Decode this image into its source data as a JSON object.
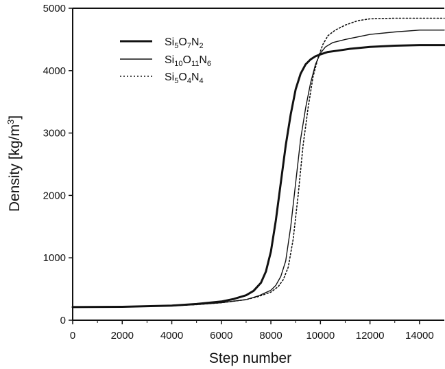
{
  "chart_data": {
    "type": "line",
    "title": "",
    "xlabel": "Step number",
    "ylabel": {
      "main": "Density [kg/m",
      "sup": "3",
      "end": "]"
    },
    "xlim": [
      0,
      15000
    ],
    "ylim": [
      0,
      5000
    ],
    "xticks": [
      0,
      2000,
      4000,
      6000,
      8000,
      10000,
      12000,
      14000
    ],
    "yticks": [
      0,
      1000,
      2000,
      3000,
      4000,
      5000
    ],
    "grid": false,
    "legend_position": "top-left",
    "series": [
      {
        "name": {
          "parts": [
            {
              "t": "Si"
            },
            {
              "t": "5",
              "sub": true
            },
            {
              "t": "O"
            },
            {
              "t": "7",
              "sub": true
            },
            {
              "t": "N"
            },
            {
              "t": "2",
              "sub": true
            }
          ]
        },
        "style": "thick",
        "x": [
          0,
          2000,
          4000,
          5000,
          6000,
          6500,
          7000,
          7300,
          7600,
          7800,
          8000,
          8200,
          8400,
          8600,
          8800,
          9000,
          9200,
          9400,
          9600,
          9800,
          10000,
          10300,
          10700,
          11200,
          12000,
          13000,
          14000,
          15000
        ],
        "y": [
          210,
          215,
          235,
          260,
          300,
          340,
          400,
          470,
          600,
          780,
          1100,
          1600,
          2200,
          2800,
          3300,
          3700,
          3950,
          4100,
          4180,
          4230,
          4260,
          4300,
          4320,
          4350,
          4380,
          4400,
          4410,
          4410
        ]
      },
      {
        "name": {
          "parts": [
            {
              "t": "Si"
            },
            {
              "t": "10",
              "sub": true
            },
            {
              "t": "O"
            },
            {
              "t": "11",
              "sub": true
            },
            {
              "t": "N"
            },
            {
              "t": "6",
              "sub": true
            }
          ]
        },
        "style": "thin",
        "x": [
          0,
          2000,
          4000,
          5000,
          6000,
          7000,
          7500,
          8000,
          8200,
          8400,
          8600,
          8800,
          9000,
          9200,
          9400,
          9600,
          9800,
          10000,
          10200,
          10500,
          11000,
          12000,
          13000,
          14000,
          15000
        ],
        "y": [
          210,
          215,
          230,
          250,
          280,
          330,
          390,
          480,
          560,
          700,
          950,
          1500,
          2200,
          2900,
          3400,
          3800,
          4100,
          4280,
          4380,
          4450,
          4500,
          4580,
          4620,
          4650,
          4650
        ]
      },
      {
        "name": {
          "parts": [
            {
              "t": "Si"
            },
            {
              "t": "5",
              "sub": true
            },
            {
              "t": "O"
            },
            {
              "t": "4",
              "sub": true
            },
            {
              "t": "N"
            },
            {
              "t": "4",
              "sub": true
            }
          ]
        },
        "style": "dotted",
        "x": [
          0,
          2000,
          4000,
          5000,
          6000,
          7000,
          7500,
          8000,
          8300,
          8500,
          8700,
          8900,
          9100,
          9300,
          9500,
          9700,
          9900,
          10100,
          10300,
          10600,
          11000,
          11500,
          12000,
          13000,
          14000,
          15000
        ],
        "y": [
          210,
          215,
          230,
          250,
          280,
          330,
          380,
          450,
          540,
          650,
          850,
          1300,
          2000,
          2800,
          3400,
          3900,
          4200,
          4420,
          4560,
          4650,
          4730,
          4800,
          4830,
          4840,
          4840,
          4840
        ]
      }
    ]
  }
}
